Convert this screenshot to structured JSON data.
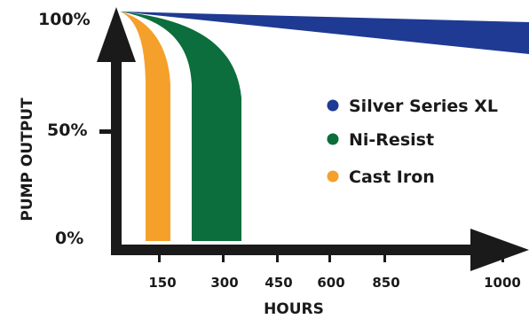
{
  "chart_data": {
    "type": "area",
    "xlabel": "HOURS",
    "ylabel": "PUMP OUTPUT",
    "x_ticks": [
      "150",
      "300",
      "450",
      "600",
      "850",
      "1000"
    ],
    "y_ticks": [
      "0%",
      "50%",
      "100%"
    ],
    "ylim": [
      0,
      100
    ],
    "legend_position": "right",
    "series": [
      {
        "name": "Silver Series XL",
        "color": "#1f3a93",
        "x": [
          0,
          1000
        ],
        "y": [
          100,
          84
        ]
      },
      {
        "name": "Ni-Resist",
        "color": "#0b6e3c",
        "x": [
          0,
          300,
          350
        ],
        "y": [
          100,
          80,
          0
        ]
      },
      {
        "name": "Cast Iron",
        "color": "#f5a02a",
        "x": [
          0,
          150,
          170
        ],
        "y": [
          100,
          80,
          0
        ]
      }
    ]
  }
}
